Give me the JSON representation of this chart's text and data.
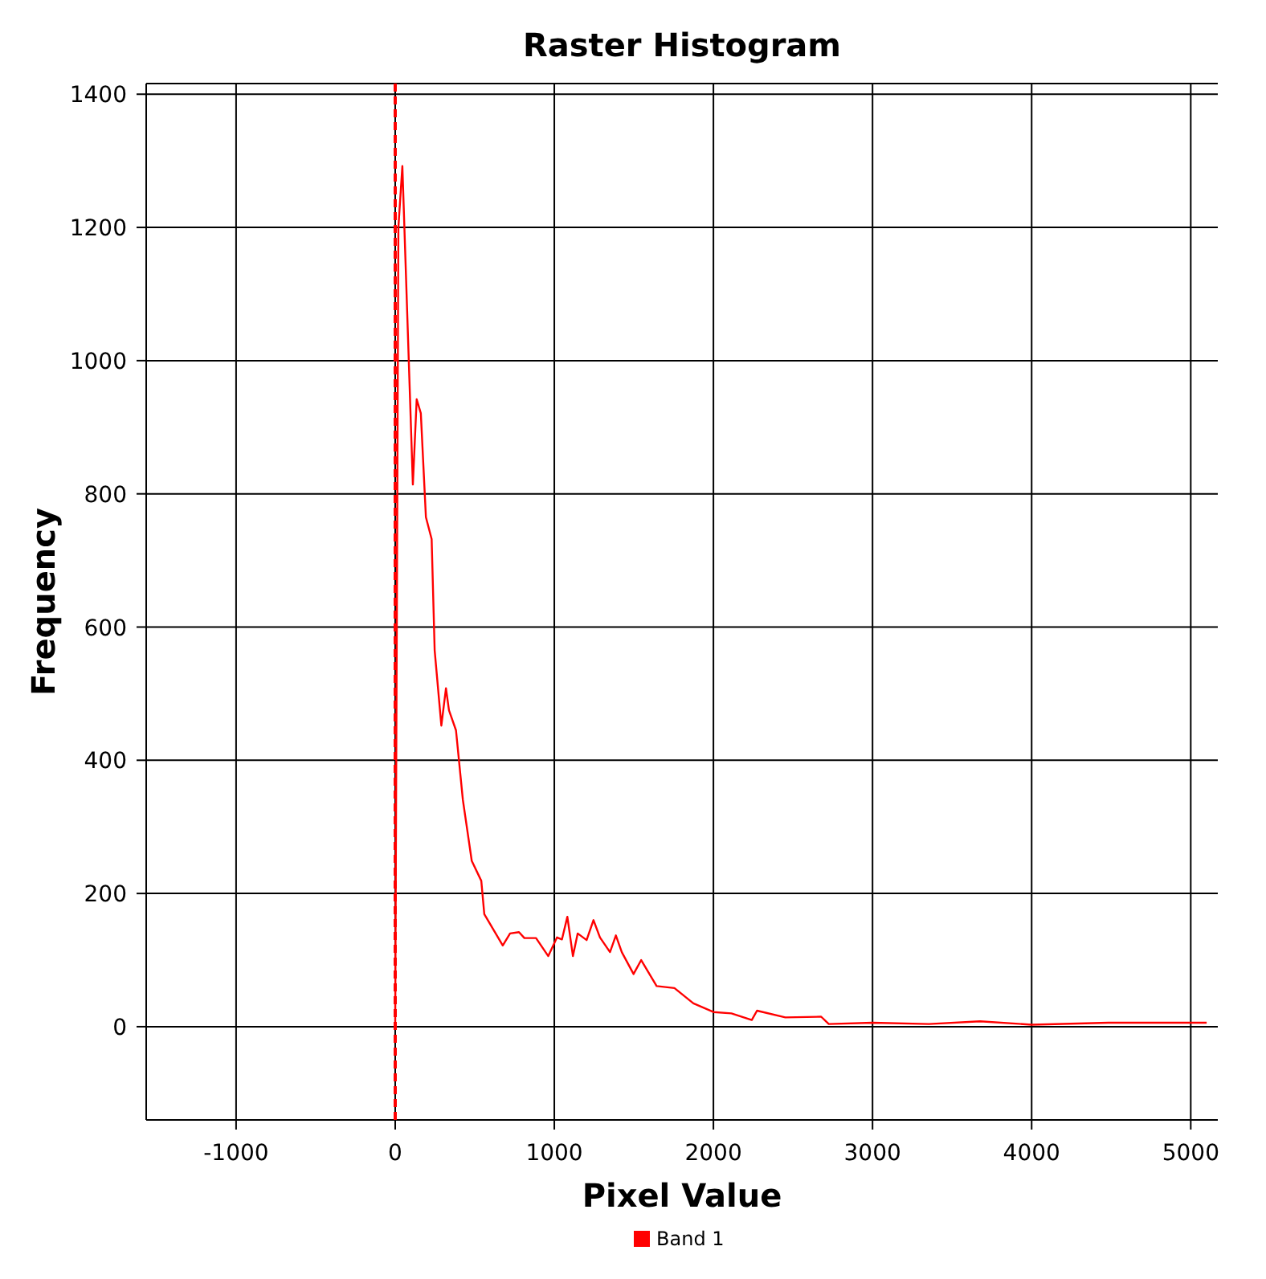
{
  "chart_data": {
    "type": "line",
    "title": "Raster Histogram",
    "xlabel": "Pixel Value",
    "ylabel": "Frequency",
    "xlim": [
      -1565,
      5170
    ],
    "ylim": [
      -140,
      1416
    ],
    "xticks": [
      -1000,
      0,
      1000,
      2000,
      3000,
      4000,
      5000
    ],
    "yticks": [
      0,
      200,
      400,
      600,
      800,
      1000,
      1200,
      1400
    ],
    "grid": true,
    "legend": "bottom",
    "marker": "none",
    "line_style": "solid",
    "ref_lines": [
      {
        "axis": "x",
        "value": 0,
        "color": "#ff0000",
        "line_style": "dashed"
      }
    ],
    "series": [
      {
        "name": "Band 1",
        "color": "#ff0000",
        "x": [
          0,
          20,
          45,
          111,
          135,
          161,
          193,
          229,
          248,
          290,
          319,
          338,
          382,
          425,
          481,
          541,
          560,
          676,
          722,
          778,
          812,
          885,
          962,
          1017,
          1048,
          1082,
          1117,
          1147,
          1203,
          1246,
          1287,
          1350,
          1387,
          1424,
          1498,
          1546,
          1643,
          1755,
          1874,
          2000,
          2113,
          2241,
          2274,
          2452,
          2677,
          2725,
          3000,
          3354,
          3676,
          4000,
          4483,
          5100
        ],
        "values": [
          0,
          1200,
          1292,
          814,
          942,
          921,
          765,
          732,
          565,
          452,
          508,
          475,
          445,
          341,
          249,
          219,
          169,
          122,
          140,
          142,
          133,
          133,
          106,
          134,
          131,
          165,
          106,
          140,
          130,
          160,
          134,
          112,
          137,
          112,
          79,
          100,
          61,
          58,
          35,
          22,
          20,
          10,
          24,
          14,
          15,
          4,
          6,
          4,
          8,
          3,
          6,
          6
        ]
      }
    ]
  }
}
